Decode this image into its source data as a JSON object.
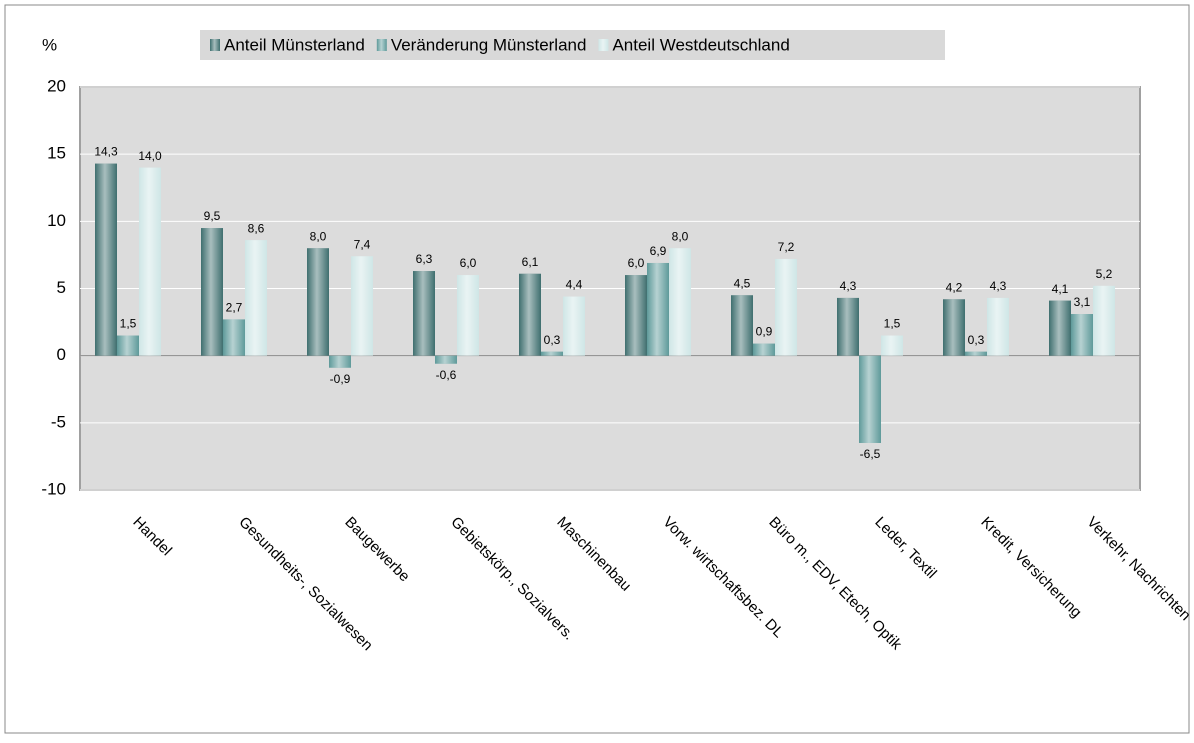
{
  "chart_data": {
    "type": "bar",
    "y_label": "%",
    "categories": [
      "Handel",
      "Gesundheits-, Sozialwesen",
      "Baugewerbe",
      "Gebietskörp., Sozialvers.",
      "Maschinenbau",
      "Vorw. wirtschaftsbez. DL",
      "Büro m., EDV, Etech, Optik",
      "Leder, Textil",
      "Kredit, Versicherung",
      "Verkehr, Nachrichten"
    ],
    "series": [
      {
        "name": "Anteil Münsterland",
        "color": "#3f6f6f",
        "values": [
          14.3,
          9.5,
          8.0,
          6.3,
          6.1,
          6.0,
          4.5,
          4.3,
          4.2,
          4.1
        ],
        "value_labels": [
          "14,3",
          "9,5",
          "8,0",
          "6,3",
          "6,1",
          "6,0",
          "4,5",
          "4,3",
          "4,2",
          "4,1"
        ]
      },
      {
        "name": "Veränderung Münsterland",
        "color": "#5e9a9a",
        "values": [
          1.5,
          2.7,
          -0.9,
          -0.6,
          0.3,
          6.9,
          0.9,
          -6.5,
          0.3,
          3.1
        ],
        "value_labels": [
          "1,5",
          "2,7",
          "-0,9",
          "-0,6",
          "0,3",
          "6,9",
          "0,9",
          "-6,5",
          "0,3",
          "3,1"
        ]
      },
      {
        "name": "Anteil Westdeutschland",
        "color": "#cfe6e6",
        "values": [
          14.0,
          8.6,
          7.4,
          6.0,
          4.4,
          8.0,
          7.2,
          1.5,
          4.3,
          5.2
        ],
        "value_labels": [
          "14,0",
          "8,6",
          "7,4",
          "6,0",
          "4,4",
          "8,0",
          "7,2",
          "1,5",
          "4,3",
          "5,2"
        ]
      }
    ],
    "ylim": [
      -10,
      20
    ],
    "yticks": [
      -10,
      -5,
      0,
      5,
      10,
      15,
      20
    ],
    "grid": true
  }
}
